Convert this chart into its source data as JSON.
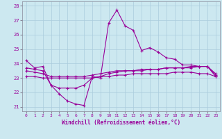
{
  "xlabel": "Windchill (Refroidissement éolien,°C)",
  "background_color": "#cce8f0",
  "line_color": "#990099",
  "grid_color": "#aaccdd",
  "hours": [
    0,
    1,
    2,
    3,
    4,
    5,
    6,
    7,
    8,
    9,
    10,
    11,
    12,
    13,
    14,
    15,
    16,
    17,
    18,
    19,
    20,
    21,
    22,
    23
  ],
  "line1": [
    24.2,
    23.7,
    23.8,
    22.5,
    21.9,
    21.4,
    21.2,
    21.1,
    23.1,
    23.0,
    26.8,
    27.7,
    26.6,
    26.3,
    24.9,
    25.1,
    24.8,
    24.4,
    24.3,
    23.9,
    23.9,
    23.8,
    23.8,
    23.1
  ],
  "line2": [
    23.7,
    23.6,
    23.5,
    22.5,
    22.3,
    22.3,
    22.3,
    22.5,
    23.0,
    23.1,
    23.3,
    23.4,
    23.5,
    23.5,
    23.5,
    23.6,
    23.6,
    23.7,
    23.7,
    23.7,
    23.8,
    23.8,
    23.8,
    23.3
  ],
  "line3": [
    23.5,
    23.4,
    23.3,
    23.1,
    23.1,
    23.1,
    23.1,
    23.1,
    23.2,
    23.3,
    23.4,
    23.5,
    23.5,
    23.5,
    23.6,
    23.6,
    23.6,
    23.7,
    23.7,
    23.7,
    23.7,
    23.8,
    23.8,
    23.2
  ],
  "line4": [
    23.1,
    23.1,
    23.0,
    23.0,
    23.0,
    23.0,
    23.0,
    23.0,
    23.0,
    23.1,
    23.1,
    23.2,
    23.2,
    23.3,
    23.3,
    23.3,
    23.3,
    23.3,
    23.4,
    23.4,
    23.4,
    23.3,
    23.3,
    23.1
  ],
  "ylim": [
    20.7,
    28.3
  ],
  "yticks": [
    21,
    22,
    23,
    24,
    25,
    26,
    27,
    28
  ],
  "spine_color": "#888899"
}
